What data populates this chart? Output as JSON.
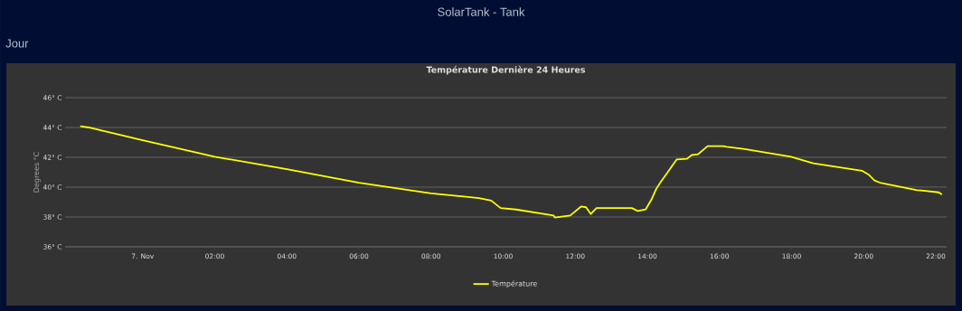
{
  "chart_data": {
    "type": "line",
    "title": "Température Dernière 24 Heures",
    "ylabel": "Degrees °C",
    "annotations": [
      "SolarTank - Tank",
      "Jour"
    ],
    "x": [
      -1.73,
      -1.5,
      0,
      2,
      4,
      6,
      8,
      9.33,
      9.67,
      9.93,
      10.36,
      11.4,
      11.43,
      11.86,
      12.16,
      12.3,
      12.43,
      12.59,
      13.57,
      13.73,
      13.95,
      14.12,
      14.25,
      14.37,
      14.55,
      14.81,
      15.1,
      15.23,
      15.4,
      15.67,
      16.09,
      16.2,
      16.7,
      17.98,
      18.6,
      19.95,
      20.13,
      20.3,
      20.45,
      21.48,
      22.08,
      22.17
    ],
    "series": [
      {
        "name": "Température",
        "color": "#ffff00",
        "values": [
          44.08,
          44.0,
          43.15,
          42.04,
          41.2,
          40.3,
          39.58,
          39.27,
          39.1,
          38.6,
          38.5,
          38.1,
          37.96,
          38.1,
          38.7,
          38.65,
          38.2,
          38.6,
          38.6,
          38.4,
          38.5,
          39.2,
          39.9,
          40.35,
          40.95,
          41.85,
          41.9,
          42.15,
          42.2,
          42.75,
          42.75,
          42.7,
          42.55,
          42.04,
          41.6,
          41.1,
          40.85,
          40.45,
          40.3,
          39.8,
          39.65,
          39.5
        ]
      }
    ],
    "xlim": [
      -2.15,
      22.3
    ],
    "ylim": [
      36,
      46
    ],
    "xticks": [
      {
        "value": 0,
        "label": "7. Nov"
      },
      {
        "value": 2,
        "label": "02:00"
      },
      {
        "value": 4,
        "label": "04:00"
      },
      {
        "value": 6,
        "label": "06:00"
      },
      {
        "value": 8,
        "label": "08:00"
      },
      {
        "value": 10,
        "label": "10:00"
      },
      {
        "value": 12,
        "label": "12:00"
      },
      {
        "value": 14,
        "label": "14:00"
      },
      {
        "value": 16,
        "label": "16:00"
      },
      {
        "value": 18,
        "label": "18:00"
      },
      {
        "value": 20,
        "label": "20:00"
      },
      {
        "value": 22,
        "label": "22:00"
      }
    ],
    "yticks": [
      {
        "value": 36,
        "label": "36° C"
      },
      {
        "value": 38,
        "label": "38° C"
      },
      {
        "value": 40,
        "label": "40° C"
      },
      {
        "value": 42,
        "label": "42° C"
      },
      {
        "value": 44,
        "label": "44° C"
      },
      {
        "value": 46,
        "label": "46° C"
      }
    ],
    "grid": "y",
    "legend": "bottom",
    "marker": "none",
    "line_style": "solid"
  }
}
